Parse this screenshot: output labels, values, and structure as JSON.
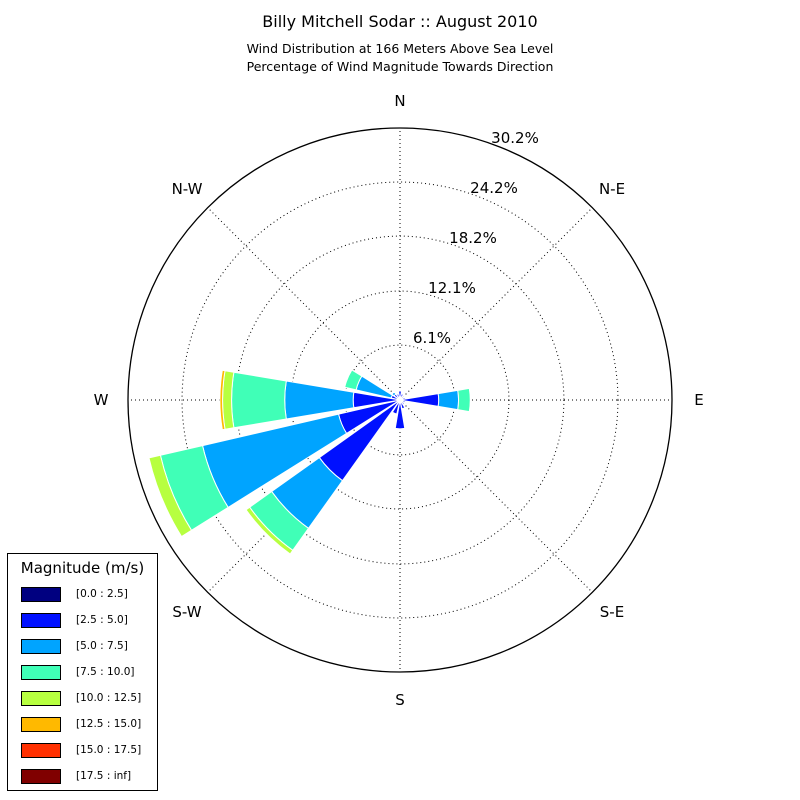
{
  "chart_data": {
    "type": "windrose",
    "title": "Billy Mitchell Sodar :: August 2010",
    "subtitle": [
      "Wind Distribution at 166 Meters Above Sea Level",
      "Percentage of Wind Magnitude Towards Direction"
    ],
    "directions": [
      "N",
      "N-E",
      "E",
      "S-E",
      "S",
      "S-W",
      "W",
      "N-W"
    ],
    "radial_ticks": [
      "6.1%",
      "12.1%",
      "18.2%",
      "24.2%",
      "30.2%"
    ],
    "radial_tick_values": [
      6.1,
      12.1,
      18.2,
      24.2,
      30.2
    ],
    "rmax": 30.2,
    "legend": {
      "title": "Magnitude (m/s)",
      "bins": [
        "[0.0 : 2.5]",
        "[2.5 : 5.0]",
        "[5.0 : 7.5]",
        "[7.5 : 10.0]",
        "[10.0 : 12.5]",
        "[12.5 : 15.0]",
        "[15.0 : 17.5]",
        "[17.5 : inf]"
      ],
      "colors": [
        "#000080",
        "#0010ff",
        "#00a4ff",
        "#40ffb7",
        "#b7ff40",
        "#ffb900",
        "#ff3000",
        "#800000"
      ]
    },
    "sectors": [
      {
        "direction_deg": 0,
        "cumulative": [
          0.3,
          1.0
        ]
      },
      {
        "direction_deg": 22.5,
        "cumulative": [
          0.2,
          0.7
        ]
      },
      {
        "direction_deg": 45,
        "cumulative": [
          0.2,
          0.5
        ]
      },
      {
        "direction_deg": 67.5,
        "cumulative": [
          0.2,
          0.6
        ]
      },
      {
        "direction_deg": 90,
        "cumulative": [
          0.3,
          4.3,
          6.5,
          7.8
        ]
      },
      {
        "direction_deg": 112.5,
        "cumulative": [
          0.2,
          0.6
        ]
      },
      {
        "direction_deg": 135,
        "cumulative": [
          0.2,
          0.6
        ]
      },
      {
        "direction_deg": 157.5,
        "cumulative": [
          0.2,
          1.0
        ]
      },
      {
        "direction_deg": 180,
        "cumulative": [
          0.2,
          3.2
        ]
      },
      {
        "direction_deg": 202.5,
        "cumulative": [
          0.2,
          1.6
        ]
      },
      {
        "direction_deg": 225,
        "cumulative": [
          0.2,
          11.0,
          17.5,
          20.5,
          21.0
        ]
      },
      {
        "direction_deg": 247.5,
        "cumulative": [
          0.3,
          7.0,
          22.5,
          27.3,
          28.6
        ]
      },
      {
        "direction_deg": 270,
        "cumulative": [
          0.3,
          5.2,
          12.8,
          18.7,
          19.7,
          20.0
        ]
      },
      {
        "direction_deg": 292.5,
        "cumulative": [
          0.2,
          1.0,
          5.0,
          6.3
        ]
      },
      {
        "direction_deg": 315,
        "cumulative": [
          0.2,
          0.8,
          1.1
        ]
      },
      {
        "direction_deg": 337.5,
        "cumulative": [
          0.2,
          0.7
        ]
      }
    ]
  }
}
